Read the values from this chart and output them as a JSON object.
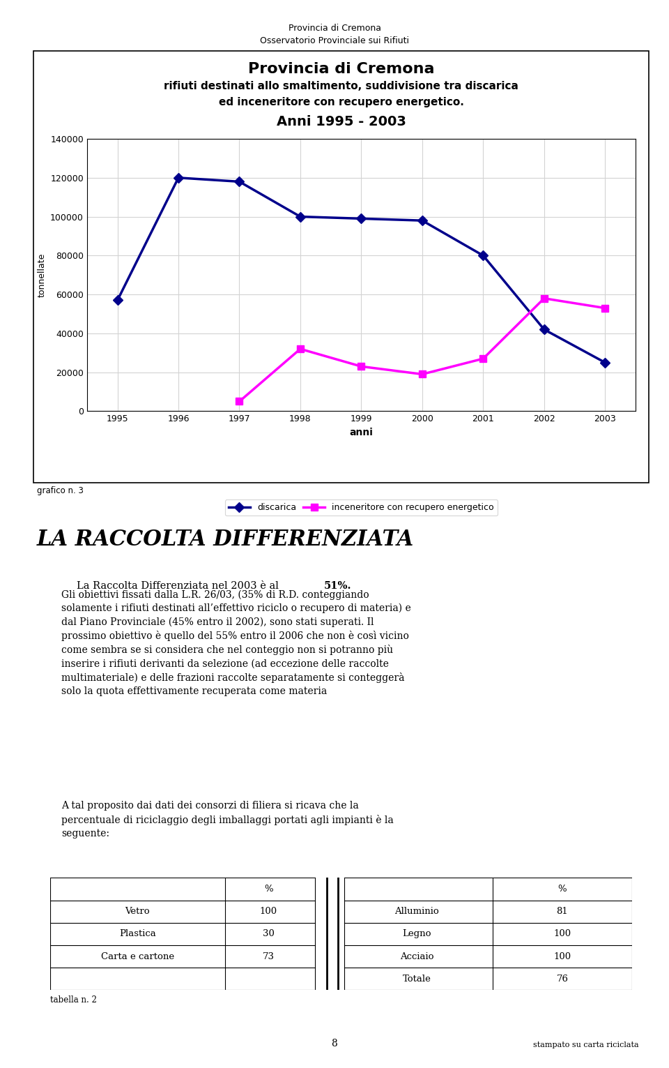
{
  "page_header_line1": "Provincia di Cremona",
  "page_header_line2": "Osservatorio Provinciale sui Rifiuti",
  "chart_title_line1": "Provincia di Cremona",
  "chart_title_line2": "rifiuti destinati allo smaltimento, suddivisione tra discarica",
  "chart_title_line3": "ed inceneritore con recupero energetico.",
  "chart_title_line4": "Anni 1995 - 2003",
  "years": [
    1995,
    1996,
    1997,
    1998,
    1999,
    2000,
    2001,
    2002,
    2003
  ],
  "discarica": [
    57000,
    120000,
    118000,
    100000,
    99000,
    98000,
    80000,
    42000,
    25000
  ],
  "inceneritore": [
    null,
    null,
    5000,
    32000,
    23000,
    19000,
    27000,
    58000,
    53000
  ],
  "discarica_color": "#00008B",
  "inceneritore_color": "#FF00FF",
  "ylabel": "tonnellate",
  "xlabel": "anni",
  "ylim": [
    0,
    140000
  ],
  "yticks": [
    0,
    20000,
    40000,
    60000,
    80000,
    100000,
    120000,
    140000
  ],
  "legend_discarica": "discarica",
  "legend_inceneritore": "inceneritore con recupero energetico",
  "grafico_label": "grafico n. 3",
  "section_title": "LA RACCOLTA DIFFERENZIATA",
  "para1_normal": "La Raccolta Differenziata nel 2003 è al ",
  "para1_bold": "51%.",
  "para2": "Gli obiettivi fissati dalla L.R. 26/03, (35% di R.D. conteggiando\nsolamente i rifiuti destinati all’effettivo riciclo o recupero di materia) e\ndal Piano Provinciale (45% entro il 2002), sono stati superati. Il\nprossimo obiettivo è quello del 55% entro il 2006 che non è così vicino\ncome sembra se si considera che nel conteggio non si potranno più\ninserire i rifiuti derivanti da selezione (ad eccezione delle raccolte\nmultimateriale) e delle frazioni raccolte separatamente si conteggerà\nsolo la quota effettivamente recuperata come materia",
  "para3": "A tal proposito dai dati dei consorzi di filiera si ricava che la\npercentuale di riciclaggio degli imballaggi portati agli impianti è la\nseguente:",
  "table_left": [
    [
      "",
      "%"
    ],
    [
      "Vetro",
      "100"
    ],
    [
      "Plastica",
      "30"
    ],
    [
      "Carta e cartone",
      "73"
    ],
    [
      "",
      ""
    ]
  ],
  "table_right": [
    [
      "",
      "%"
    ],
    [
      "Alluminio",
      "81"
    ],
    [
      "Legno",
      "100"
    ],
    [
      "Acciaio",
      "100"
    ],
    [
      "Totale",
      "76"
    ]
  ],
  "tabella_label": "tabella n. 2",
  "page_number": "8",
  "footer_right": "stampato su carta riciclata",
  "background_color": "#FFFFFF"
}
